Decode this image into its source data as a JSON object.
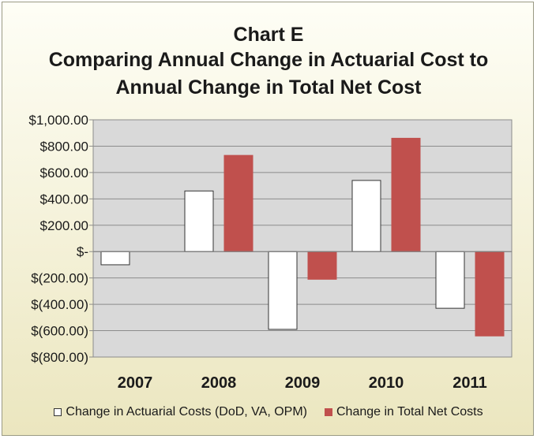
{
  "chart_data": {
    "type": "bar",
    "title_lines": [
      "Chart E",
      "Comparing Annual Change in Actuarial Cost to",
      "Annual Change in Total Net Cost"
    ],
    "categories": [
      "2007",
      "2008",
      "2009",
      "2010",
      "2011"
    ],
    "series": [
      {
        "name": "Change in Actuarial Costs (DoD, VA, OPM)",
        "color": "#ffffff",
        "stroke": "#333333",
        "values": [
          -100,
          460,
          -590,
          540,
          -430
        ]
      },
      {
        "name": "Change in Total Net Costs",
        "color": "#c0504d",
        "stroke": "#c0504d",
        "values": [
          null,
          730,
          -210,
          860,
          -640
        ]
      }
    ],
    "ylim": [
      -800,
      1000
    ],
    "yticks": [
      1000,
      800,
      600,
      400,
      200,
      0,
      -200,
      -400,
      -600,
      -800
    ],
    "ytick_labels": [
      "$1,000.00",
      "$800.00",
      "$600.00",
      "$400.00",
      "$200.00",
      "$-",
      "$(200.00)",
      "$(400.00)",
      "$(600.00)",
      "$(800.00)"
    ],
    "grid": true,
    "legend_position": "bottom",
    "plot_background": "#d9d9d9"
  }
}
